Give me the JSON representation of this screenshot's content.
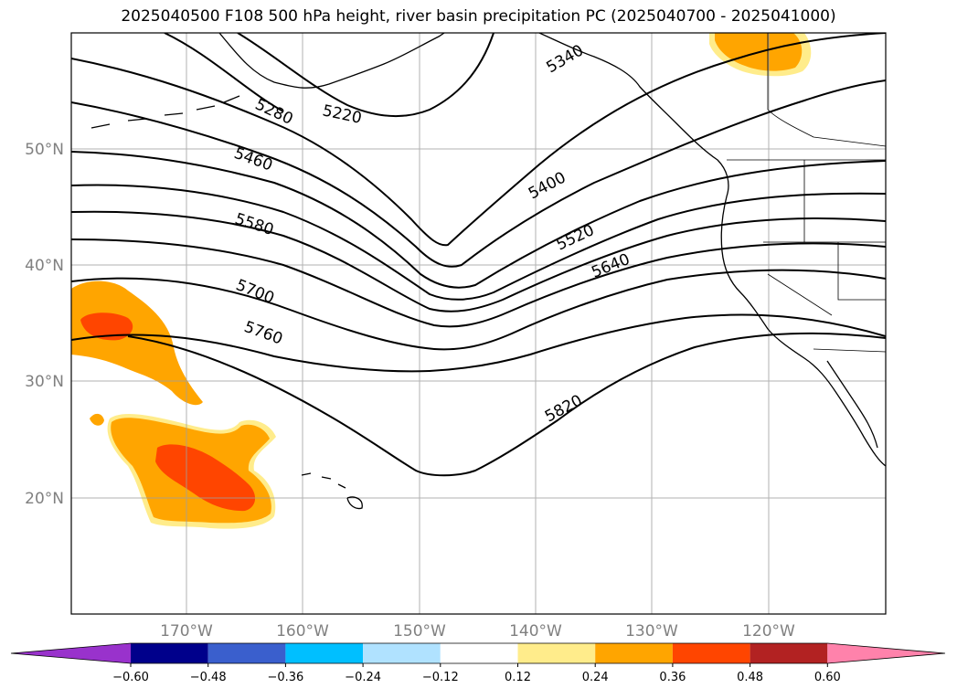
{
  "title": "2025040500 F108 500 hPa height, river basin precipitation PC (2025040700 - 2025041000)",
  "lat_labels": [
    "50°N",
    "40°N",
    "30°N",
    "20°N"
  ],
  "lon_labels": [
    "170°W",
    "160°W",
    "150°W",
    "140°W",
    "130°W",
    "120°W"
  ],
  "contour_labels": [
    "5280",
    "5220",
    "5340",
    "5460",
    "5400",
    "5580",
    "5520",
    "5640",
    "5700",
    "5760",
    "5820"
  ],
  "colorbar": {
    "ticks": [
      "−0.60",
      "−0.48",
      "−0.36",
      "−0.24",
      "−0.12",
      "0.12",
      "0.24",
      "0.36",
      "0.48",
      "0.60"
    ],
    "colors": [
      "#9932cc",
      "#00008b",
      "#3a5fcd",
      "#00bfff",
      "#b0e2ff",
      "#ffffff",
      "#ffec8b",
      "#ffa500",
      "#ff4500",
      "#b22222",
      "#ff82ab"
    ]
  },
  "shading_colors": {
    "light": "#ffec8b",
    "mid": "#ffa500",
    "high": "#ff4500"
  }
}
